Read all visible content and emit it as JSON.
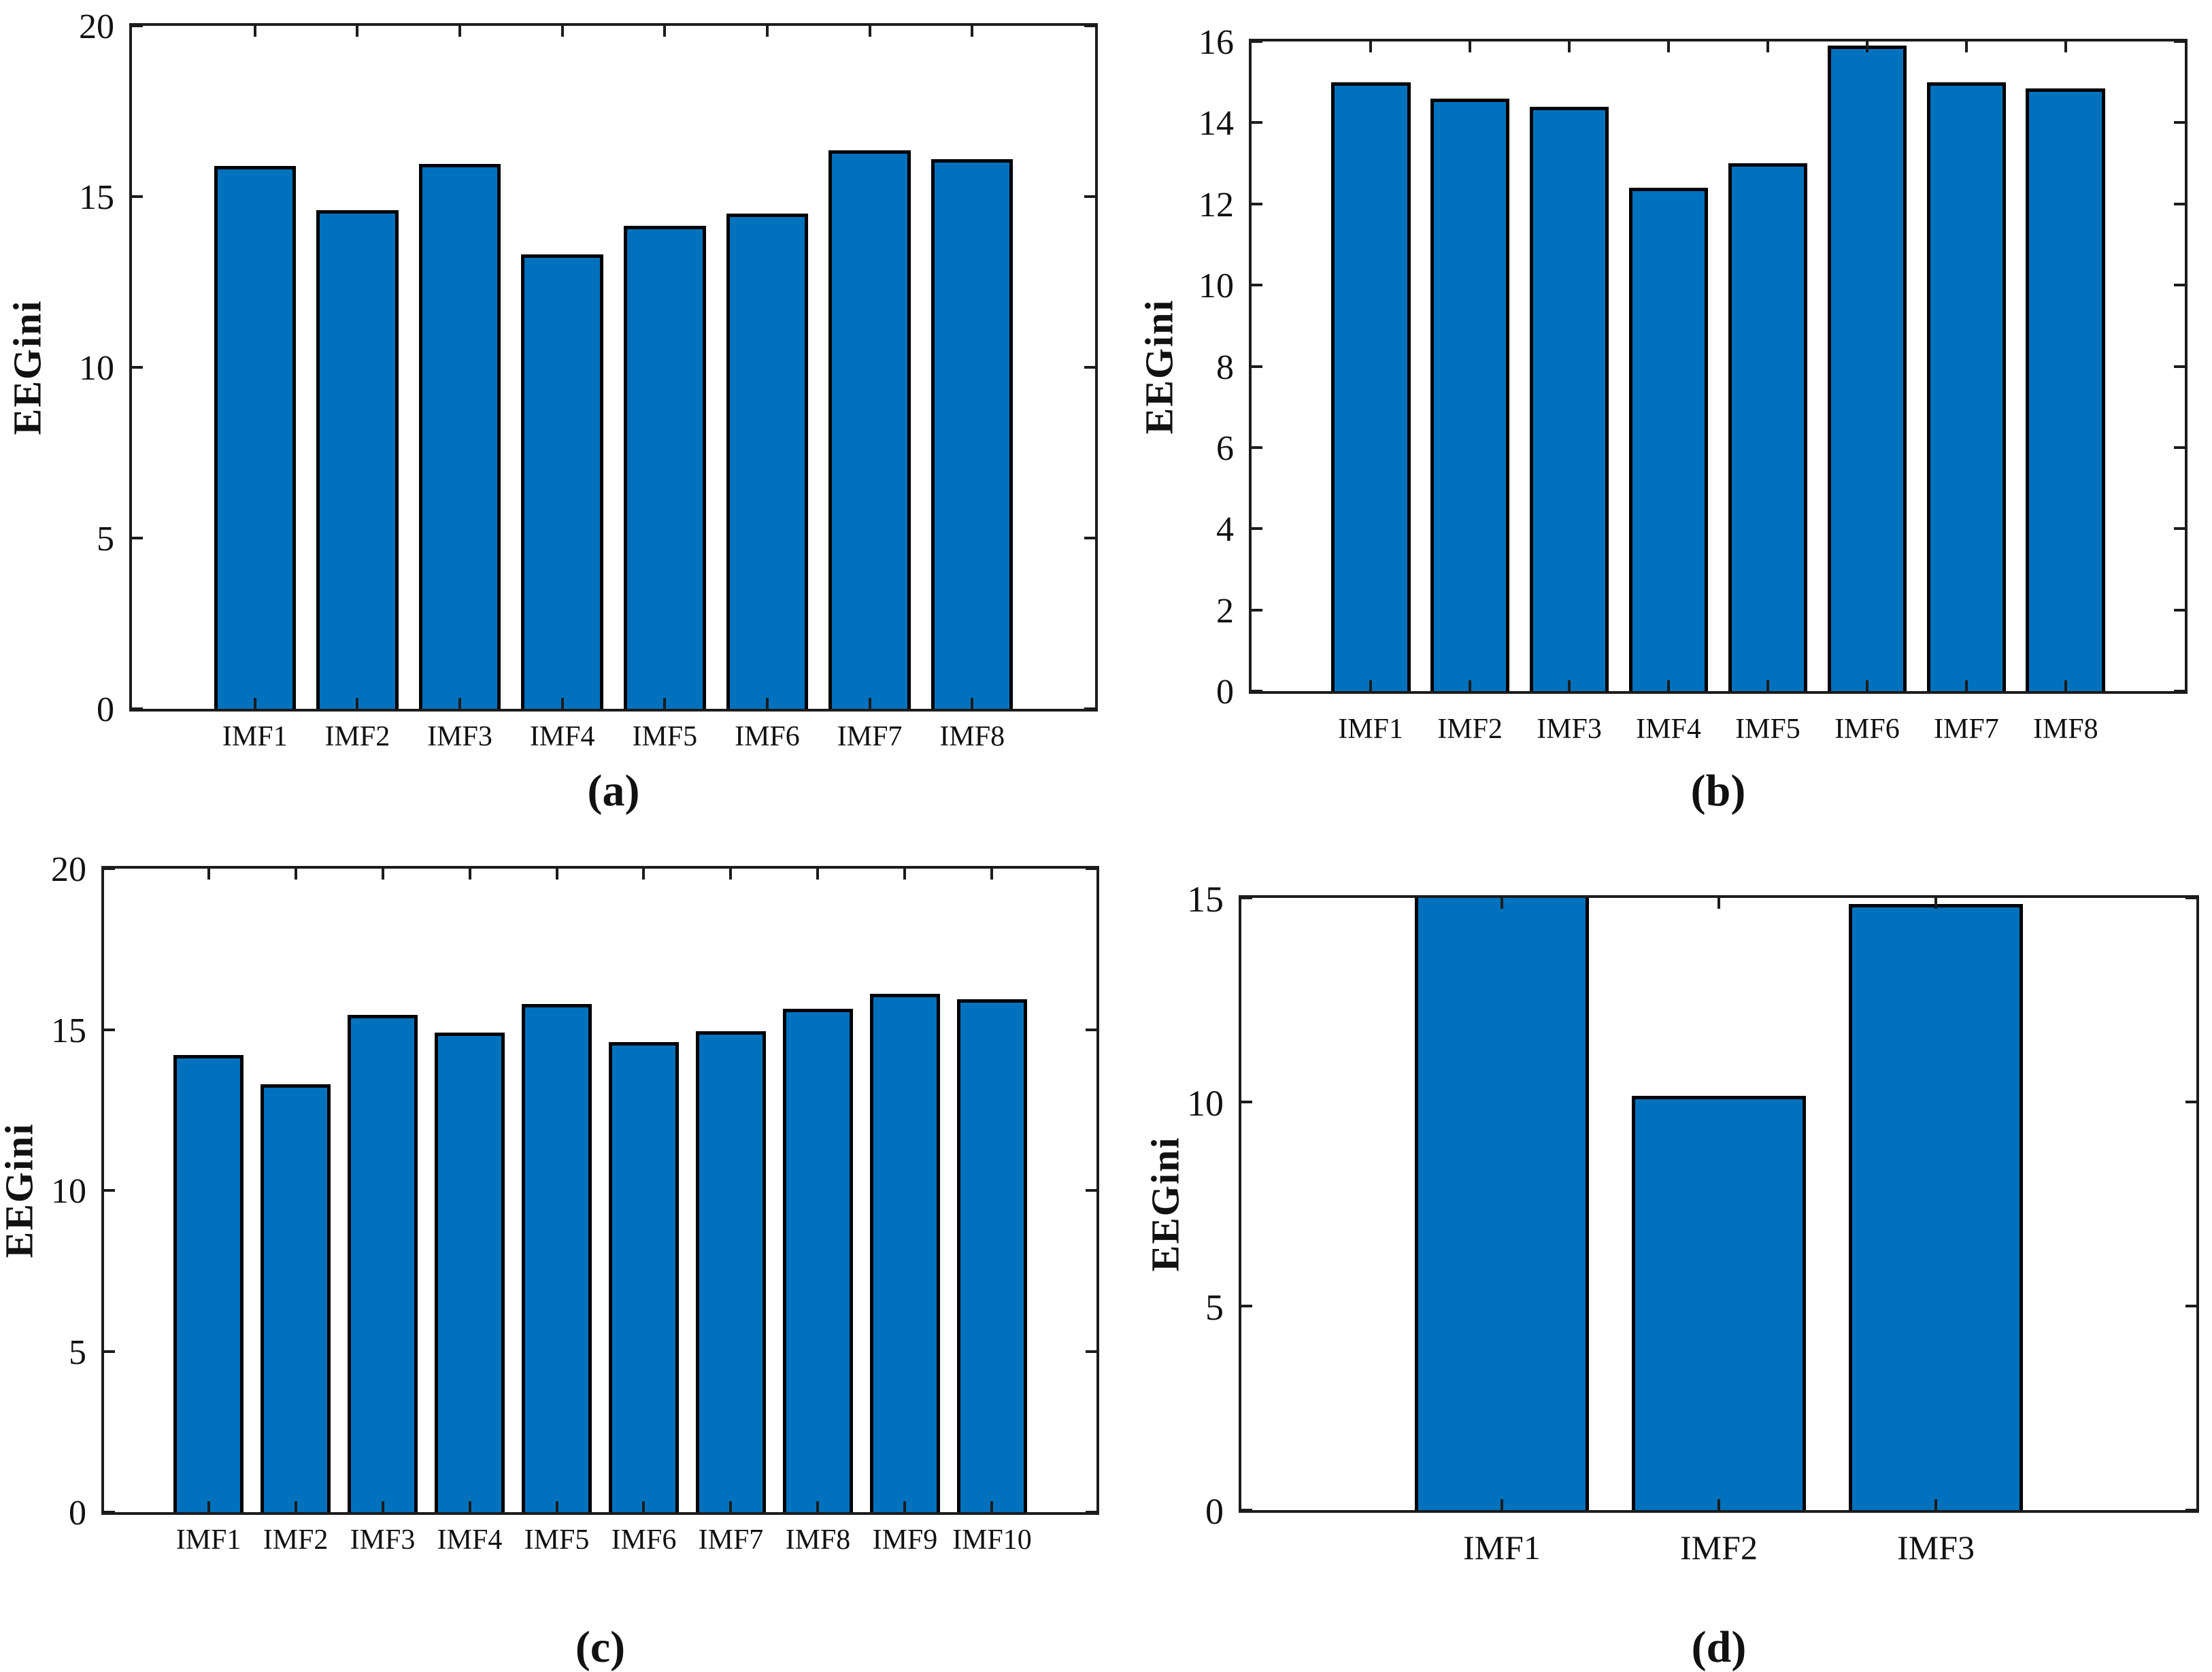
{
  "figure": {
    "background": "#ffffff",
    "style": {
      "bar_color": "#0072BD",
      "bar_edge_color": "#000000",
      "axis_color": "#1c1c1c",
      "text_color": "#111111"
    }
  },
  "chart_data": [
    {
      "type": "bar",
      "panel": "a",
      "caption": "(a)",
      "title": "",
      "xlabel": "",
      "ylabel": "EEGini",
      "categories": [
        "IMF1",
        "IMF2",
        "IMF3",
        "IMF4",
        "IMF5",
        "IMF6",
        "IMF7",
        "IMF8"
      ],
      "values": [
        15.9,
        14.6,
        15.95,
        13.3,
        14.15,
        14.5,
        16.35,
        16.1
      ],
      "ylim": [
        0,
        20
      ],
      "yticks": [
        0,
        5,
        10,
        15,
        20
      ],
      "grid": false,
      "legend": null
    },
    {
      "type": "bar",
      "panel": "b",
      "caption": "(b)",
      "title": "",
      "xlabel": "",
      "ylabel": "EEGini",
      "categories": [
        "IMF1",
        "IMF2",
        "IMF3",
        "IMF4",
        "IMF5",
        "IMF6",
        "IMF7",
        "IMF8"
      ],
      "values": [
        15.0,
        14.6,
        14.4,
        12.4,
        13.0,
        15.9,
        15.0,
        14.85
      ],
      "ylim": [
        0,
        16
      ],
      "yticks": [
        0,
        2,
        4,
        6,
        8,
        10,
        12,
        14,
        16
      ],
      "grid": false,
      "legend": null
    },
    {
      "type": "bar",
      "panel": "c",
      "caption": "(c)",
      "title": "",
      "xlabel": "",
      "ylabel": "EEGini",
      "categories": [
        "IMF1",
        "IMF2",
        "IMF3",
        "IMF4",
        "IMF5",
        "IMF6",
        "IMF7",
        "IMF8",
        "IMF9",
        "IMF10"
      ],
      "values": [
        14.2,
        13.3,
        15.45,
        14.9,
        15.8,
        14.6,
        14.95,
        15.65,
        16.1,
        15.95
      ],
      "ylim": [
        0,
        20
      ],
      "yticks": [
        0,
        5,
        10,
        15,
        20
      ],
      "grid": false,
      "legend": null
    },
    {
      "type": "bar",
      "panel": "d",
      "caption": "(d)",
      "title": "",
      "xlabel": "",
      "ylabel": "EEGini",
      "categories": [
        "IMF1",
        "IMF2",
        "IMF3"
      ],
      "values": [
        15.1,
        10.15,
        14.85
      ],
      "ylim": [
        0,
        15
      ],
      "yticks": [
        0,
        5,
        10,
        15
      ],
      "grid": false,
      "legend": null,
      "note": "IMF1 bar is clipped at the axis top (value exceeds ylim max)"
    }
  ]
}
